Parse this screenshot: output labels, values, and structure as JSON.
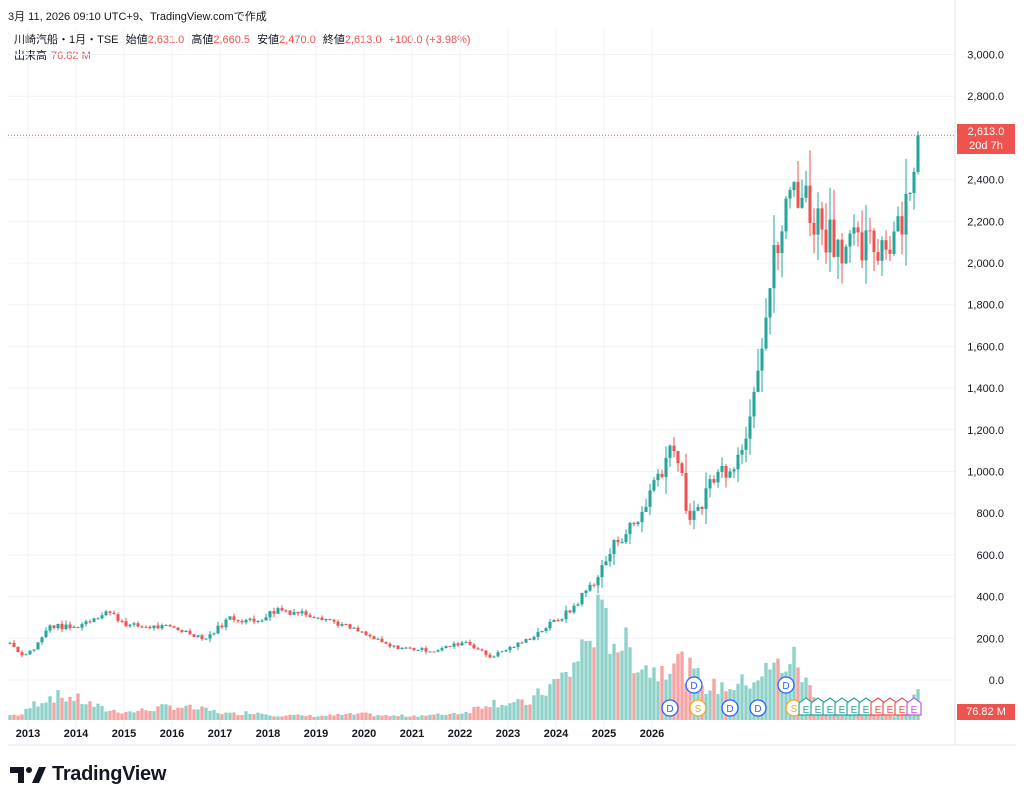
{
  "header": {
    "snapshot_text": "3月 11, 2026 09:10 UTC+9、TradingView.comで作成",
    "symbol": "川崎汽船・1月・TSE",
    "open_label": "始値",
    "open": "2,631.0",
    "high_label": "高値",
    "high": "2,660.5",
    "low_label": "安値",
    "low": "2,470.0",
    "close_label": "終値",
    "close": "2,613.0",
    "change": "+100.0 (+3.98%)",
    "volume_label": "出来高",
    "volume": "76.82 M"
  },
  "price_tag": {
    "price": "2,613.0",
    "countdown": "20d 7h"
  },
  "volume_tag": "76.82 M",
  "brand": "TradingView",
  "colors": {
    "up": "#26a69a",
    "down": "#ef5350",
    "up_vol": "#8fd1c9",
    "down_vol": "#f4a4a2",
    "grid": "#f0f3fa",
    "text": "#131722"
  },
  "chart_data": {
    "type": "candlestick",
    "title": "川崎汽船・1月・TSE",
    "interval": "monthly",
    "ylim": [
      -130,
      3100
    ],
    "y_ticks": [
      3000,
      2800,
      2600,
      2400,
      2200,
      2000,
      1800,
      1600,
      1400,
      1200,
      1000,
      800,
      600,
      400,
      200,
      0
    ],
    "y_tick_labels": [
      "3,000.0",
      "2,800.0",
      "2,600.0",
      "2,400.0",
      "2,200.0",
      "2,000.0",
      "1,800.0",
      "1,600.0",
      "1,400.0",
      "1,200.0",
      "1,000.0",
      "800.0",
      "600.0",
      "400.0",
      "200.0",
      "0.0"
    ],
    "x_ticks": [
      "2013",
      "2014",
      "2015",
      "2016",
      "2017",
      "2018",
      "2019",
      "2020",
      "2021",
      "2022",
      "2023",
      "2024",
      "2025",
      "2026"
    ],
    "volume_max": 400,
    "anchors": [
      [
        0,
        178,
        12
      ],
      [
        3,
        120,
        14
      ],
      [
        6,
        150,
        40
      ],
      [
        10,
        260,
        60
      ],
      [
        16,
        250,
        55
      ],
      [
        24,
        330,
        25
      ],
      [
        30,
        260,
        20
      ],
      [
        41,
        250,
        35
      ],
      [
        49,
        200,
        25
      ],
      [
        55,
        300,
        15
      ],
      [
        61,
        280,
        20
      ],
      [
        67,
        340,
        12
      ],
      [
        77,
        310,
        10
      ],
      [
        88,
        225,
        15
      ],
      [
        95,
        160,
        10
      ],
      [
        106,
        140,
        12
      ],
      [
        114,
        185,
        20
      ],
      [
        120,
        110,
        45
      ],
      [
        129,
        190,
        40
      ],
      [
        140,
        330,
        120
      ],
      [
        147,
        500,
        250
      ],
      [
        152,
        680,
        200
      ],
      [
        157,
        760,
        150
      ],
      [
        161,
        950,
        120
      ],
      [
        166,
        1150,
        160
      ],
      [
        170,
        740,
        120
      ],
      [
        175,
        950,
        80
      ],
      [
        183,
        1100,
        90
      ],
      [
        191,
        2000,
        130
      ],
      [
        196,
        2400,
        150
      ],
      [
        202,
        2200,
        40
      ],
      [
        212,
        2050,
        15
      ],
      [
        219,
        2100,
        10
      ],
      [
        224,
        2300,
        15
      ],
      [
        227,
        2613,
        77
      ]
    ],
    "dividend_markers": [
      "D",
      "D",
      "S",
      "D",
      "D",
      "D",
      "S"
    ],
    "earnings_markers": [
      "E",
      "E",
      "E",
      "E",
      "E",
      "E",
      "E",
      "E",
      "E",
      "E"
    ]
  }
}
